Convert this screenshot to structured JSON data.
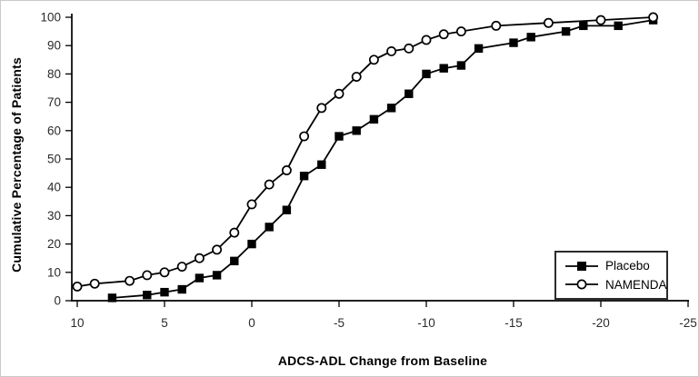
{
  "chart_data": {
    "type": "line",
    "title": "",
    "xlabel": "ADCS-ADL Change from Baseline",
    "ylabel": "Cumulative Percentage of Patients",
    "xlim": [
      10,
      -25
    ],
    "ylim": [
      0,
      100
    ],
    "x_axis_reversed": true,
    "x_ticks": [
      10,
      5,
      0,
      -5,
      -10,
      -15,
      -20,
      -25
    ],
    "y_ticks": [
      0,
      10,
      20,
      30,
      40,
      50,
      60,
      70,
      80,
      90,
      100
    ],
    "grid": false,
    "line_color": "#000000",
    "background_color": "#ffffff",
    "legend_position": "lower-right",
    "series": [
      {
        "name": "Placebo",
        "marker": "filled-square",
        "color": "#000000",
        "points": [
          [
            8,
            1
          ],
          [
            6,
            2
          ],
          [
            5,
            3
          ],
          [
            4,
            4
          ],
          [
            3,
            8
          ],
          [
            2,
            9
          ],
          [
            1,
            14
          ],
          [
            0,
            20
          ],
          [
            -1,
            26
          ],
          [
            -2,
            32
          ],
          [
            -3,
            44
          ],
          [
            -4,
            48
          ],
          [
            -5,
            58
          ],
          [
            -6,
            60
          ],
          [
            -7,
            64
          ],
          [
            -8,
            68
          ],
          [
            -9,
            73
          ],
          [
            -10,
            80
          ],
          [
            -11,
            82
          ],
          [
            -12,
            83
          ],
          [
            -13,
            89
          ],
          [
            -15,
            91
          ],
          [
            -16,
            93
          ],
          [
            -18,
            95
          ],
          [
            -19,
            97
          ],
          [
            -21,
            97
          ],
          [
            -23,
            99
          ]
        ]
      },
      {
        "name": "NAMENDA",
        "marker": "open-circle",
        "color": "#000000",
        "points": [
          [
            10,
            5
          ],
          [
            9,
            6
          ],
          [
            7,
            7
          ],
          [
            6,
            9
          ],
          [
            5,
            10
          ],
          [
            4,
            12
          ],
          [
            3,
            15
          ],
          [
            2,
            18
          ],
          [
            1,
            24
          ],
          [
            0,
            34
          ],
          [
            -1,
            41
          ],
          [
            -2,
            46
          ],
          [
            -3,
            58
          ],
          [
            -4,
            68
          ],
          [
            -5,
            73
          ],
          [
            -6,
            79
          ],
          [
            -7,
            85
          ],
          [
            -8,
            88
          ],
          [
            -9,
            89
          ],
          [
            -10,
            92
          ],
          [
            -11,
            94
          ],
          [
            -12,
            95
          ],
          [
            -14,
            97
          ],
          [
            -17,
            98
          ],
          [
            -20,
            99
          ],
          [
            -23,
            100
          ]
        ]
      }
    ]
  }
}
